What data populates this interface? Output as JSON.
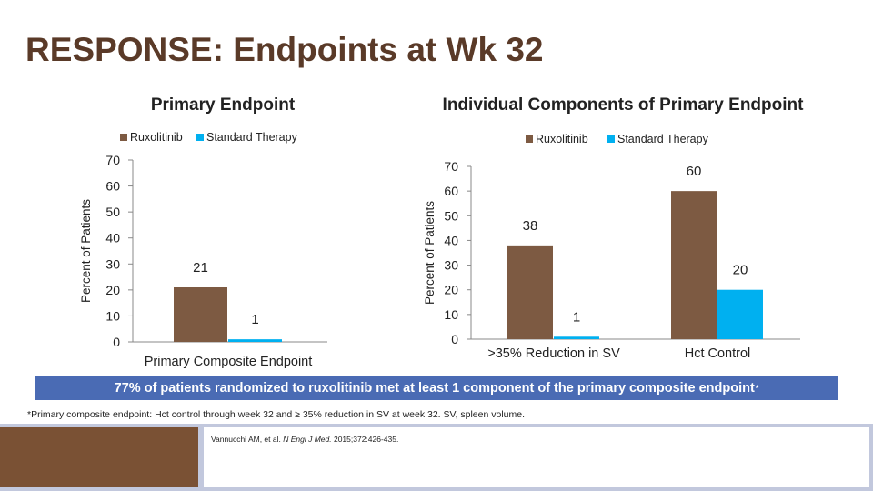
{
  "title": "RESPONSE: Endpoints at Wk 32",
  "colors": {
    "ruxolitinib": "#7d5a42",
    "standard_therapy": "#00b0f0",
    "title": "#5a3a28",
    "banner": "#4a6bb4",
    "bottom_band": "#c2c8dd",
    "brown_block": "#7a5134"
  },
  "chart_data": [
    {
      "type": "bar",
      "title": "Primary Endpoint",
      "ylabel": "Percent of Patients",
      "xlabel": "",
      "ylim": [
        0,
        70
      ],
      "yticks": [
        0,
        10,
        20,
        30,
        40,
        50,
        60,
        70
      ],
      "legend_position": "top",
      "categories": [
        "Primary Composite Endpoint"
      ],
      "series": [
        {
          "name": "Ruxolitinib",
          "values": [
            21
          ]
        },
        {
          "name": "Standard Therapy",
          "values": [
            1
          ]
        }
      ]
    },
    {
      "type": "bar",
      "title": "Individual Components of Primary Endpoint",
      "ylabel": "Percent of Patients",
      "xlabel": "",
      "ylim": [
        0,
        70
      ],
      "yticks": [
        0,
        10,
        20,
        30,
        40,
        50,
        60,
        70
      ],
      "legend_position": "top",
      "categories": [
        ">35% Reduction in SV",
        "Hct Control"
      ],
      "series": [
        {
          "name": "Ruxolitinib",
          "values": [
            38,
            60
          ]
        },
        {
          "name": "Standard Therapy",
          "values": [
            1,
            20
          ]
        }
      ]
    }
  ],
  "banner": {
    "text": "77% of patients randomized to ruxolitinib met at least 1 component of the primary composite endpoint",
    "marker": "*"
  },
  "footnote": "*Primary composite endpoint: Hct control through week 32 and ≥ 35% reduction in SV at week 32. SV, spleen volume.",
  "citation": {
    "authors": "Vannucchi AM, et al. ",
    "journal": "N Engl J Med.",
    "details": " 2015;372:426-435."
  }
}
